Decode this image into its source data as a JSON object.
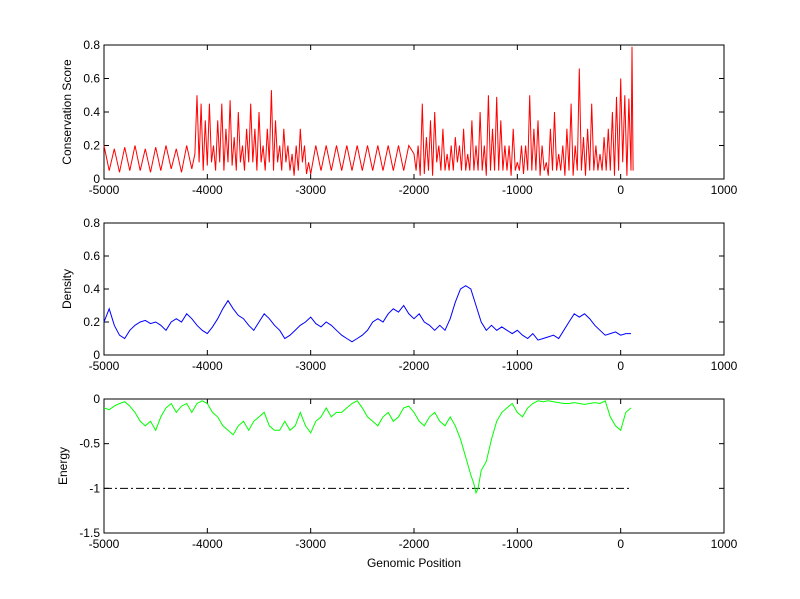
{
  "chart_data": [
    {
      "type": "line",
      "title": "",
      "xlabel": "",
      "ylabel": "Conservation Score",
      "xlim": [
        -5000,
        1000
      ],
      "ylim": [
        0,
        0.8
      ],
      "xticks": [
        -5000,
        -4000,
        -3000,
        -2000,
        -1000,
        0,
        1000
      ],
      "yticks": [
        0,
        0.2,
        0.4,
        0.6,
        0.8
      ],
      "xtick_labels": [
        "-5000",
        "-4000",
        "-3000",
        "-2000",
        "-1000",
        "0",
        "1000"
      ],
      "ytick_labels": [
        "0",
        "0.2",
        "0.4",
        "0.6",
        "0.8"
      ],
      "color": "#ff0000",
      "series": [
        {
          "x": [
            -5000,
            -4950,
            -4900,
            -4850,
            -4800,
            -4750,
            -4700,
            -4650,
            -4600,
            -4550,
            -4500,
            -4450,
            -4400,
            -4350,
            -4300,
            -4250,
            -4200,
            -4150,
            -4120,
            -4100,
            -4080,
            -4060,
            -4040,
            -4020,
            -4000,
            -3980,
            -3960,
            -3940,
            -3920,
            -3900,
            -3880,
            -3860,
            -3840,
            -3820,
            -3800,
            -3780,
            -3760,
            -3740,
            -3720,
            -3700,
            -3680,
            -3660,
            -3640,
            -3620,
            -3600,
            -3580,
            -3560,
            -3540,
            -3520,
            -3500,
            -3480,
            -3460,
            -3440,
            -3420,
            -3400,
            -3380,
            -3360,
            -3340,
            -3320,
            -3300,
            -3280,
            -3260,
            -3240,
            -3220,
            -3200,
            -3180,
            -3160,
            -3140,
            -3120,
            -3100,
            -3080,
            -3060,
            -3040,
            -3020,
            -3000,
            -2950,
            -2900,
            -2850,
            -2800,
            -2750,
            -2700,
            -2650,
            -2600,
            -2550,
            -2500,
            -2450,
            -2400,
            -2350,
            -2300,
            -2250,
            -2200,
            -2150,
            -2100,
            -2050,
            -2000,
            -1980,
            -1960,
            -1940,
            -1920,
            -1900,
            -1880,
            -1860,
            -1840,
            -1820,
            -1800,
            -1780,
            -1760,
            -1740,
            -1720,
            -1700,
            -1680,
            -1660,
            -1640,
            -1620,
            -1600,
            -1580,
            -1560,
            -1540,
            -1520,
            -1500,
            -1480,
            -1460,
            -1440,
            -1420,
            -1400,
            -1380,
            -1360,
            -1340,
            -1320,
            -1300,
            -1280,
            -1260,
            -1240,
            -1220,
            -1200,
            -1180,
            -1160,
            -1140,
            -1120,
            -1100,
            -1080,
            -1060,
            -1040,
            -1020,
            -1000,
            -980,
            -960,
            -940,
            -920,
            -900,
            -880,
            -860,
            -840,
            -820,
            -800,
            -780,
            -760,
            -740,
            -720,
            -700,
            -680,
            -660,
            -640,
            -620,
            -600,
            -580,
            -560,
            -540,
            -520,
            -500,
            -480,
            -460,
            -440,
            -420,
            -400,
            -380,
            -360,
            -340,
            -320,
            -300,
            -280,
            -260,
            -240,
            -220,
            -200,
            -180,
            -160,
            -140,
            -120,
            -100,
            -80,
            -60,
            -40,
            -20,
            0,
            20,
            40,
            60,
            80,
            100,
            110,
            120
          ],
          "y": [
            0.2,
            0.05,
            0.18,
            0.04,
            0.19,
            0.05,
            0.2,
            0.05,
            0.18,
            0.04,
            0.19,
            0.05,
            0.2,
            0.06,
            0.18,
            0.04,
            0.2,
            0.06,
            0.15,
            0.5,
            0.1,
            0.45,
            0.05,
            0.35,
            0.08,
            0.45,
            0.1,
            0.2,
            0.05,
            0.35,
            0.1,
            0.45,
            0.05,
            0.3,
            0.1,
            0.47,
            0.08,
            0.25,
            0.05,
            0.4,
            0.1,
            0.2,
            0.05,
            0.3,
            0.1,
            0.45,
            0.1,
            0.3,
            0.05,
            0.4,
            0.1,
            0.2,
            0.05,
            0.3,
            0.1,
            0.53,
            0.05,
            0.35,
            0.1,
            0.2,
            0.05,
            0.3,
            0.1,
            0.2,
            0.05,
            0.15,
            0.02,
            0.2,
            0.05,
            0.3,
            0.1,
            0.2,
            0.03,
            0.1,
            0.03,
            0.2,
            0.05,
            0.2,
            0.05,
            0.2,
            0.05,
            0.2,
            0.05,
            0.2,
            0.05,
            0.2,
            0.05,
            0.2,
            0.05,
            0.2,
            0.05,
            0.2,
            0.05,
            0.2,
            0.15,
            0.05,
            0.2,
            0.02,
            0.45,
            0.03,
            0.25,
            0.05,
            0.35,
            0.02,
            0.4,
            0.1,
            0.2,
            0.05,
            0.3,
            0.05,
            0.15,
            0.05,
            0.2,
            0.05,
            0.25,
            0.1,
            0.2,
            0.05,
            0.3,
            0.05,
            0.15,
            0.05,
            0.35,
            0.05,
            0.2,
            0.05,
            0.4,
            0.05,
            0.2,
            0.02,
            0.5,
            0.05,
            0.3,
            0.05,
            0.49,
            0.05,
            0.35,
            0.05,
            0.2,
            0.05,
            0.2,
            0.02,
            0.3,
            0.05,
            0.1,
            0.05,
            0.2,
            0.03,
            0.2,
            0.05,
            0.5,
            0.05,
            0.3,
            0.05,
            0.35,
            0.02,
            0.2,
            0.05,
            0.1,
            0.02,
            0.3,
            0.05,
            0.4,
            0.05,
            0.15,
            0.05,
            0.2,
            0.02,
            0.3,
            0.05,
            0.45,
            0.02,
            0.2,
            0.05,
            0.66,
            0.05,
            0.25,
            0.02,
            0.3,
            0.05,
            0.45,
            0.05,
            0.2,
            0.05,
            0.15,
            0.05,
            0.25,
            0.05,
            0.3,
            0.05,
            0.4,
            0.02,
            0.49,
            0.05,
            0.6,
            0.1,
            0.5,
            0.02,
            0.48,
            0.05,
            0.79,
            0.05
          ]
        }
      ]
    },
    {
      "type": "line",
      "title": "",
      "xlabel": "",
      "ylabel": "Density",
      "xlim": [
        -5000,
        1000
      ],
      "ylim": [
        0,
        0.8
      ],
      "xticks": [
        -5000,
        -4000,
        -3000,
        -2000,
        -1000,
        0,
        1000
      ],
      "yticks": [
        0,
        0.2,
        0.4,
        0.6,
        0.8
      ],
      "xtick_labels": [
        "-5000",
        "-4000",
        "-3000",
        "-2000",
        "-1000",
        "0",
        "1000"
      ],
      "ytick_labels": [
        "0",
        "0.2",
        "0.4",
        "0.6",
        "0.8"
      ],
      "color": "#0000ff",
      "series": [
        {
          "x": [
            -5000,
            -4950,
            -4900,
            -4850,
            -4800,
            -4750,
            -4700,
            -4650,
            -4600,
            -4550,
            -4500,
            -4450,
            -4400,
            -4350,
            -4300,
            -4250,
            -4200,
            -4150,
            -4100,
            -4050,
            -4000,
            -3950,
            -3900,
            -3850,
            -3800,
            -3750,
            -3700,
            -3650,
            -3600,
            -3550,
            -3500,
            -3450,
            -3400,
            -3350,
            -3300,
            -3250,
            -3200,
            -3150,
            -3100,
            -3050,
            -3000,
            -2950,
            -2900,
            -2850,
            -2800,
            -2750,
            -2700,
            -2650,
            -2600,
            -2550,
            -2500,
            -2450,
            -2400,
            -2350,
            -2300,
            -2250,
            -2200,
            -2150,
            -2100,
            -2050,
            -2000,
            -1950,
            -1900,
            -1850,
            -1800,
            -1750,
            -1700,
            -1650,
            -1600,
            -1550,
            -1500,
            -1450,
            -1400,
            -1350,
            -1300,
            -1250,
            -1200,
            -1150,
            -1100,
            -1050,
            -1000,
            -950,
            -900,
            -850,
            -800,
            -750,
            -700,
            -650,
            -600,
            -550,
            -500,
            -450,
            -400,
            -350,
            -300,
            -250,
            -200,
            -150,
            -100,
            -50,
            0,
            50,
            100
          ],
          "y": [
            0.2,
            0.28,
            0.18,
            0.12,
            0.1,
            0.15,
            0.18,
            0.2,
            0.21,
            0.19,
            0.2,
            0.18,
            0.15,
            0.2,
            0.22,
            0.2,
            0.25,
            0.22,
            0.18,
            0.15,
            0.13,
            0.17,
            0.22,
            0.28,
            0.33,
            0.28,
            0.24,
            0.22,
            0.18,
            0.15,
            0.2,
            0.25,
            0.22,
            0.18,
            0.15,
            0.1,
            0.12,
            0.15,
            0.18,
            0.2,
            0.23,
            0.19,
            0.17,
            0.2,
            0.18,
            0.15,
            0.12,
            0.1,
            0.08,
            0.1,
            0.12,
            0.15,
            0.2,
            0.22,
            0.2,
            0.25,
            0.28,
            0.26,
            0.3,
            0.25,
            0.22,
            0.25,
            0.2,
            0.18,
            0.15,
            0.18,
            0.15,
            0.22,
            0.32,
            0.4,
            0.42,
            0.4,
            0.3,
            0.2,
            0.15,
            0.18,
            0.15,
            0.17,
            0.15,
            0.13,
            0.15,
            0.12,
            0.1,
            0.13,
            0.09,
            0.1,
            0.11,
            0.12,
            0.1,
            0.15,
            0.2,
            0.25,
            0.23,
            0.25,
            0.22,
            0.18,
            0.15,
            0.12,
            0.13,
            0.14,
            0.12,
            0.13,
            0.13
          ]
        }
      ]
    },
    {
      "type": "line",
      "title": "",
      "xlabel": "Genomic Position",
      "ylabel": "Energy",
      "xlim": [
        -5000,
        1000
      ],
      "ylim": [
        -1.5,
        0
      ],
      "xticks": [
        -5000,
        -4000,
        -3000,
        -2000,
        -1000,
        0,
        1000
      ],
      "yticks": [
        -1.5,
        -1,
        -0.5,
        0
      ],
      "xtick_labels": [
        "-5000",
        "-4000",
        "-3000",
        "-2000",
        "-1000",
        "0",
        "1000"
      ],
      "ytick_labels": [
        "-1.5",
        "-1",
        "-0.5",
        "0"
      ],
      "color": "#00ff00",
      "reference_line": {
        "y": -1,
        "x": [
          -5000,
          100
        ],
        "style": "dash-dot",
        "color": "#000000"
      },
      "series": [
        {
          "x": [
            -5000,
            -4950,
            -4900,
            -4850,
            -4800,
            -4750,
            -4700,
            -4650,
            -4600,
            -4550,
            -4500,
            -4450,
            -4400,
            -4350,
            -4300,
            -4250,
            -4200,
            -4150,
            -4100,
            -4050,
            -4000,
            -3950,
            -3900,
            -3850,
            -3800,
            -3750,
            -3700,
            -3650,
            -3600,
            -3550,
            -3500,
            -3450,
            -3400,
            -3350,
            -3300,
            -3250,
            -3200,
            -3150,
            -3100,
            -3050,
            -3000,
            -2950,
            -2900,
            -2850,
            -2800,
            -2750,
            -2700,
            -2650,
            -2600,
            -2550,
            -2500,
            -2450,
            -2400,
            -2350,
            -2300,
            -2250,
            -2200,
            -2150,
            -2100,
            -2050,
            -2000,
            -1950,
            -1900,
            -1850,
            -1800,
            -1750,
            -1700,
            -1650,
            -1600,
            -1550,
            -1500,
            -1450,
            -1420,
            -1400,
            -1380,
            -1350,
            -1300,
            -1250,
            -1200,
            -1150,
            -1100,
            -1050,
            -1000,
            -950,
            -900,
            -850,
            -800,
            -750,
            -700,
            -650,
            -600,
            -550,
            -500,
            -450,
            -400,
            -350,
            -300,
            -250,
            -200,
            -150,
            -100,
            -50,
            0,
            50,
            100
          ],
          "y": [
            -0.1,
            -0.12,
            -0.08,
            -0.05,
            -0.03,
            -0.08,
            -0.15,
            -0.25,
            -0.3,
            -0.25,
            -0.35,
            -0.2,
            -0.1,
            -0.05,
            -0.15,
            -0.08,
            -0.05,
            -0.15,
            -0.05,
            -0.02,
            -0.05,
            -0.15,
            -0.2,
            -0.3,
            -0.35,
            -0.4,
            -0.3,
            -0.25,
            -0.35,
            -0.25,
            -0.2,
            -0.15,
            -0.3,
            -0.35,
            -0.35,
            -0.25,
            -0.35,
            -0.3,
            -0.15,
            -0.3,
            -0.38,
            -0.25,
            -0.2,
            -0.1,
            -0.2,
            -0.15,
            -0.15,
            -0.1,
            -0.05,
            -0.02,
            -0.1,
            -0.2,
            -0.25,
            -0.3,
            -0.2,
            -0.15,
            -0.25,
            -0.2,
            -0.1,
            -0.08,
            -0.15,
            -0.25,
            -0.3,
            -0.2,
            -0.15,
            -0.25,
            -0.3,
            -0.2,
            -0.3,
            -0.45,
            -0.65,
            -0.85,
            -0.95,
            -1.05,
            -1.0,
            -0.8,
            -0.7,
            -0.45,
            -0.25,
            -0.15,
            -0.1,
            -0.05,
            -0.15,
            -0.2,
            -0.1,
            -0.05,
            -0.02,
            -0.03,
            -0.02,
            -0.03,
            -0.04,
            -0.05,
            -0.05,
            -0.04,
            -0.05,
            -0.06,
            -0.05,
            -0.04,
            -0.05,
            -0.02,
            -0.2,
            -0.3,
            -0.35,
            -0.15,
            -0.1
          ]
        }
      ]
    }
  ]
}
